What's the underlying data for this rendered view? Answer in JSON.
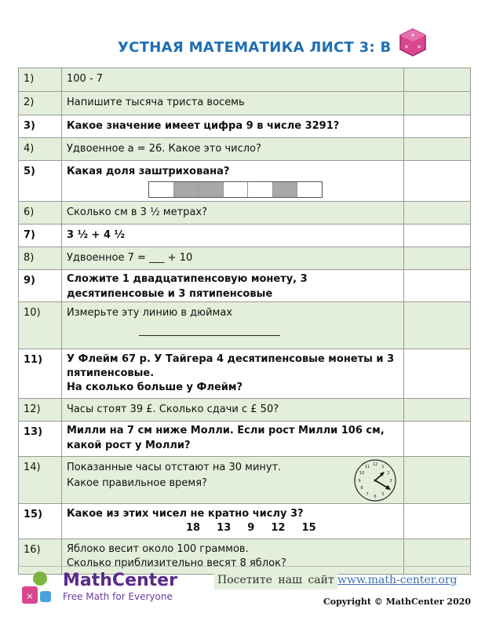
{
  "header": {
    "title": "УСТНАЯ МАТЕМАТИКА ЛИСТ 3: В"
  },
  "questions": [
    {
      "num": "1)",
      "text": "100 - 7"
    },
    {
      "num": "2)",
      "text": "Напишите тысяча триста восемь"
    },
    {
      "num": "3)",
      "text": "Какое значение имеет цифра 9 в числе 3291?"
    },
    {
      "num": "4)",
      "text": "Удвоенное а = 26. Какое это число?"
    },
    {
      "num": "5)",
      "text": "Какая доля заштрихована?",
      "shaded_cells": [
        2,
        3,
        6
      ],
      "total_cells": 7
    },
    {
      "num": "6)",
      "text": "Сколько см в 3 ½ метрах?"
    },
    {
      "num": "7)",
      "text": "3 ½ + 4 ½"
    },
    {
      "num": "8)",
      "text": "Удвоенное 7 = ___ + 10"
    },
    {
      "num": "9)",
      "text": "Сложите 1 двадцатипенсовую монету, 3 десятипенсовые и 3 пятипенсовые"
    },
    {
      "num": "10)",
      "text": "Измерьте эту линию в дюймах"
    },
    {
      "num": "11)",
      "text": "У Флейм 67 р. У Тайгера 4 десятипенсовые монеты и 3 пятипенсовые.",
      "text2": "На сколько больше у Флейм?"
    },
    {
      "num": "12)",
      "text": "Часы стоят 39 £. Сколько сдачи с £ 50?"
    },
    {
      "num": "13)",
      "text": "Милли на 7 см ниже Молли. Если рост Милли 106 см, какой рост у Молли?"
    },
    {
      "num": "14)",
      "text": "Показанные часы отстают на 30 минут.",
      "text2": "Какое правильное время?",
      "clock_time": "1:20"
    },
    {
      "num": "15)",
      "text": "Какое из этих чисел не кратно числу 3?",
      "text2": "18  13  9  12  15"
    },
    {
      "num": "16)",
      "text": "Яблоко весит около 100 граммов.",
      "text2": "Сколько приблизительно весят 8 яблок?"
    }
  ],
  "footer": {
    "brand": "MathCenter",
    "tagline": "Free Math for Everyone",
    "visit": "Посетите наш сайт",
    "url": "www.math-center.org",
    "copyright": "Copyright © MathCenter 2020"
  },
  "colors": {
    "title": "#1f6fb5",
    "row_green": "#e4efdb",
    "brand": "#5a2a8a"
  }
}
